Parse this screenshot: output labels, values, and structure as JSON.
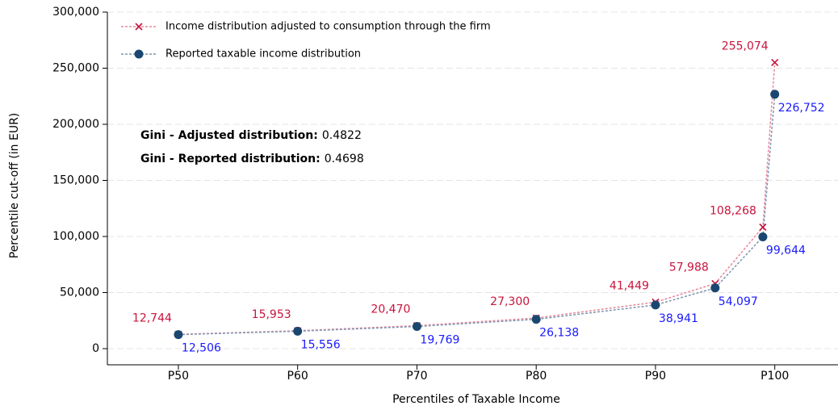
{
  "chart_data": {
    "type": "line",
    "x_label": "Percentiles of Taxable Income",
    "y_label": "Percentile cut-off (in EUR)",
    "x": [
      50,
      60,
      70,
      80,
      90,
      95,
      99,
      100
    ],
    "series": [
      {
        "name": "Income distribution adjusted to consumption through the firm",
        "color": "#c8143c",
        "line_color": "#e8889a",
        "marker": "x",
        "values": [
          12744,
          15953,
          20470,
          27300,
          41449,
          57988,
          108268,
          255074
        ],
        "value_labels": [
          "12,744",
          "15,953",
          "20,470",
          "27,300",
          "41,449",
          "57,988",
          "108,268",
          "255,074"
        ]
      },
      {
        "name": "Reported taxable income distribution",
        "color": "#1a476f",
        "line_color": "#7f96b0",
        "label_color": "#1a1aff",
        "marker": "circle",
        "values": [
          12506,
          15556,
          19769,
          26138,
          38941,
          54097,
          99644,
          226752
        ],
        "value_labels": [
          "12,506",
          "15,556",
          "19,769",
          "26,138",
          "38,941",
          "54,097",
          "99,644",
          "226,752"
        ]
      }
    ],
    "xlim": [
      44.05,
      105.3
    ],
    "xticks": [
      {
        "value": 50,
        "label": "P50"
      },
      {
        "value": 60,
        "label": "P60"
      },
      {
        "value": 70,
        "label": "P70"
      },
      {
        "value": 80,
        "label": "P80"
      },
      {
        "value": 90,
        "label": "P90"
      },
      {
        "value": 100,
        "label": "P100"
      }
    ],
    "ylim": [
      -14400,
      300000
    ],
    "yticks": [
      0,
      {
        "value": 50000,
        "label": "50,000"
      },
      {
        "value": 100000,
        "label": "100,000"
      },
      {
        "value": 150000,
        "label": "150,000"
      },
      {
        "value": 200000,
        "label": "200,000"
      },
      {
        "value": 250000,
        "label": "250,000"
      },
      {
        "value": 300000,
        "label": "300,000"
      }
    ],
    "grid": true,
    "legend": "top-left",
    "annotations": [
      {
        "label": "Gini - Adjusted distribution:",
        "value": "0.4822"
      },
      {
        "label": "Gini - Reported distribution:",
        "value": "0.4698"
      }
    ]
  }
}
